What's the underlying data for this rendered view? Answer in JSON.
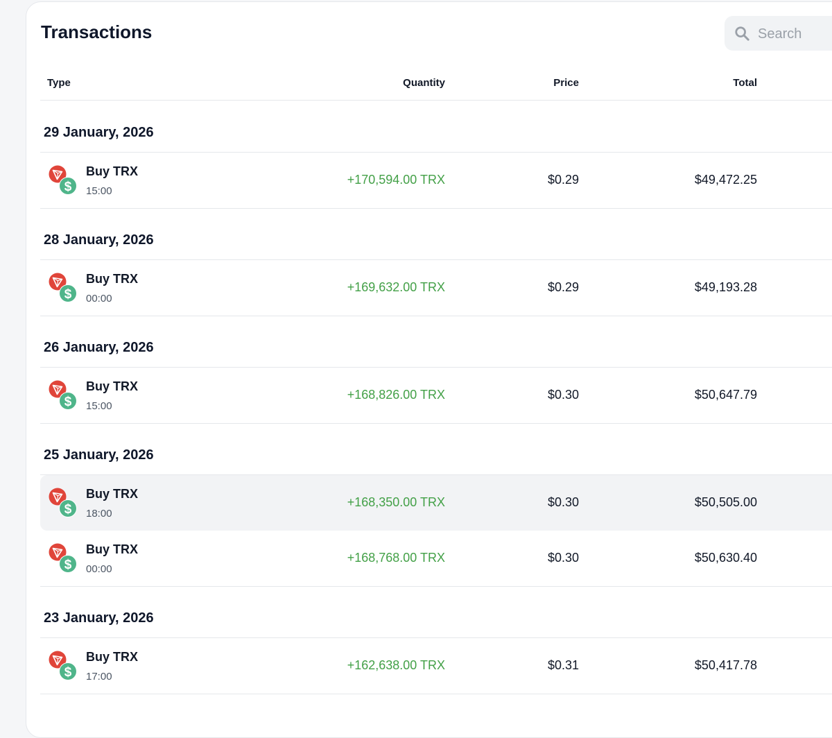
{
  "page": {
    "title": "Transactions"
  },
  "search": {
    "placeholder": "Search"
  },
  "columns": {
    "type": "Type",
    "quantity": "Quantity",
    "price": "Price",
    "total": "Total"
  },
  "colors": {
    "positive": "#43a047",
    "trx": "#e0453a",
    "usd": "#4fb58a",
    "highlight_row": "#f2f3f5"
  },
  "groups": [
    {
      "date": "29 January, 2026",
      "rows": [
        {
          "type": "Buy TRX",
          "time": "15:00",
          "quantity": "+170,594.00 TRX",
          "price": "$0.29",
          "total": "$49,472.25"
        }
      ]
    },
    {
      "date": "28 January, 2026",
      "rows": [
        {
          "type": "Buy TRX",
          "time": "00:00",
          "quantity": "+169,632.00 TRX",
          "price": "$0.29",
          "total": "$49,193.28"
        }
      ]
    },
    {
      "date": "26 January, 2026",
      "rows": [
        {
          "type": "Buy TRX",
          "time": "15:00",
          "quantity": "+168,826.00 TRX",
          "price": "$0.30",
          "total": "$50,647.79"
        }
      ]
    },
    {
      "date": "25 January, 2026",
      "rows": [
        {
          "type": "Buy TRX",
          "time": "18:00",
          "quantity": "+168,350.00 TRX",
          "price": "$0.30",
          "total": "$50,505.00",
          "highlighted": true
        },
        {
          "type": "Buy TRX",
          "time": "00:00",
          "quantity": "+168,768.00 TRX",
          "price": "$0.30",
          "total": "$50,630.40"
        }
      ]
    },
    {
      "date": "23 January, 2026",
      "rows": [
        {
          "type": "Buy TRX",
          "time": "17:00",
          "quantity": "+162,638.00 TRX",
          "price": "$0.31",
          "total": "$50,417.78"
        }
      ]
    }
  ],
  "icons": {
    "search": "search-icon",
    "trx": "tron-coin-icon",
    "usd": "dollar-coin-icon"
  }
}
